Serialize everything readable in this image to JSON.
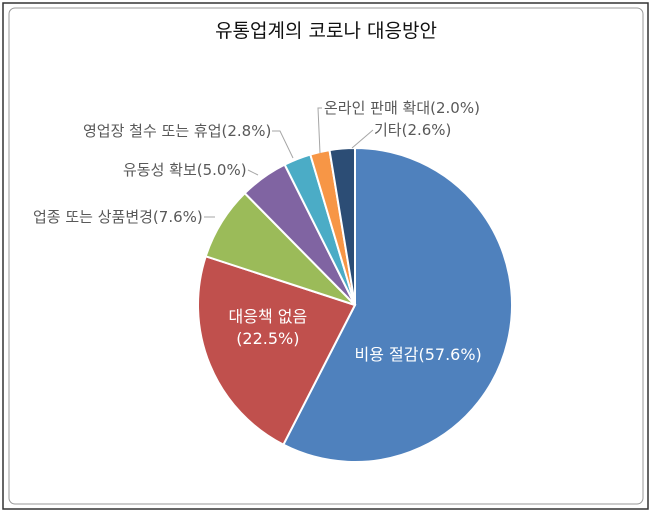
{
  "chart_data": {
    "type": "pie",
    "title": "유통업계의 코로나 대응방안",
    "values": [
      57.6,
      22.5,
      7.6,
      5.0,
      2.8,
      2.0,
      2.6
    ],
    "value_labels": [
      "비용 절감(57.6%)",
      "대응책 없음\n(22.5%)",
      "업종 또는 상품변경(7.6%)",
      "유동성 확보(5.0%)",
      "영업장 철수 또는 휴업(2.8%)",
      "온라인 판매 확대(2.0%)",
      "기타(2.6%)"
    ],
    "colors": [
      "#4f81bd",
      "#c0504d",
      "#9bbb59",
      "#8064a2",
      "#4bacc6",
      "#f79646",
      "#2c4d75"
    ]
  }
}
